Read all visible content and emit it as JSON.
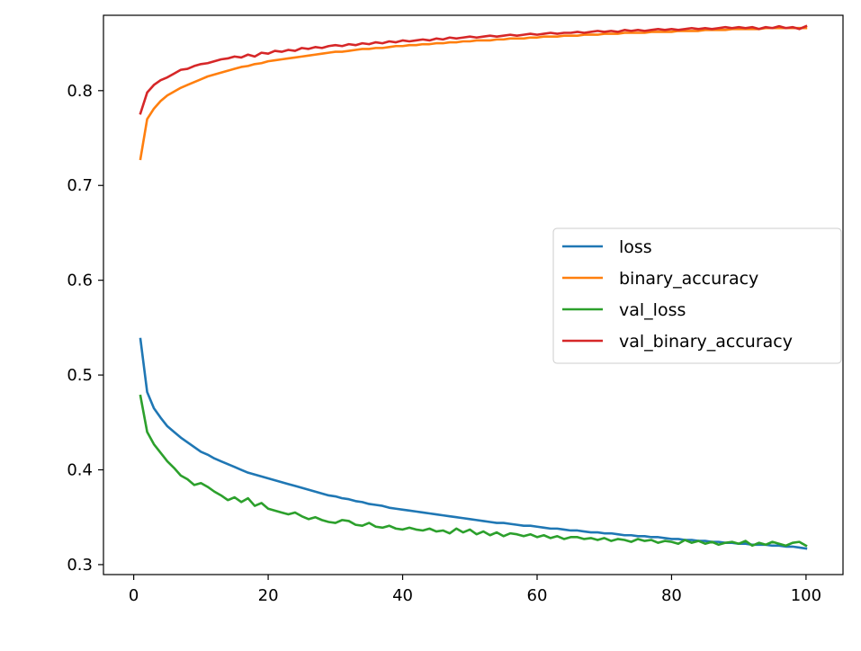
{
  "chart_data": {
    "type": "line",
    "title": "",
    "xlabel": "",
    "ylabel": "",
    "xlim": [
      -4.5,
      105.5
    ],
    "ylim": [
      0.2895,
      0.8795
    ],
    "x_ticks": [
      0,
      20,
      40,
      60,
      80,
      100
    ],
    "y_ticks": [
      0.3,
      0.4,
      0.5,
      0.6,
      0.7,
      0.8
    ],
    "x_tick_labels": [
      "0",
      "20",
      "40",
      "60",
      "80",
      "100"
    ],
    "y_tick_labels": [
      "0.3",
      "0.4",
      "0.5",
      "0.6",
      "0.7",
      "0.8"
    ],
    "grid": false,
    "legend_position": "center-right",
    "x": [
      1,
      2,
      3,
      4,
      5,
      6,
      7,
      8,
      9,
      10,
      11,
      12,
      13,
      14,
      15,
      16,
      17,
      18,
      19,
      20,
      21,
      22,
      23,
      24,
      25,
      26,
      27,
      28,
      29,
      30,
      31,
      32,
      33,
      34,
      35,
      36,
      37,
      38,
      39,
      40,
      41,
      42,
      43,
      44,
      45,
      46,
      47,
      48,
      49,
      50,
      51,
      52,
      53,
      54,
      55,
      56,
      57,
      58,
      59,
      60,
      61,
      62,
      63,
      64,
      65,
      66,
      67,
      68,
      69,
      70,
      71,
      72,
      73,
      74,
      75,
      76,
      77,
      78,
      79,
      80,
      81,
      82,
      83,
      84,
      85,
      86,
      87,
      88,
      89,
      90,
      91,
      92,
      93,
      94,
      95,
      96,
      97,
      98,
      99,
      100
    ],
    "series": [
      {
        "name": "loss",
        "color": "#1f77b4",
        "values": [
          0.538,
          0.482,
          0.465,
          0.455,
          0.446,
          0.44,
          0.434,
          0.429,
          0.424,
          0.419,
          0.416,
          0.412,
          0.409,
          0.406,
          0.403,
          0.4,
          0.397,
          0.395,
          0.393,
          0.391,
          0.389,
          0.387,
          0.385,
          0.383,
          0.381,
          0.379,
          0.377,
          0.375,
          0.373,
          0.372,
          0.37,
          0.369,
          0.367,
          0.366,
          0.364,
          0.363,
          0.362,
          0.36,
          0.359,
          0.358,
          0.357,
          0.356,
          0.355,
          0.354,
          0.353,
          0.352,
          0.351,
          0.35,
          0.349,
          0.348,
          0.347,
          0.346,
          0.345,
          0.344,
          0.344,
          0.343,
          0.342,
          0.341,
          0.341,
          0.34,
          0.339,
          0.338,
          0.338,
          0.337,
          0.336,
          0.336,
          0.335,
          0.334,
          0.334,
          0.333,
          0.333,
          0.332,
          0.331,
          0.331,
          0.33,
          0.33,
          0.329,
          0.329,
          0.328,
          0.327,
          0.327,
          0.326,
          0.326,
          0.325,
          0.325,
          0.324,
          0.324,
          0.323,
          0.323,
          0.322,
          0.322,
          0.321,
          0.321,
          0.321,
          0.32,
          0.32,
          0.319,
          0.319,
          0.318,
          0.317
        ]
      },
      {
        "name": "binary_accuracy",
        "color": "#ff7f0e",
        "values": [
          0.728,
          0.77,
          0.781,
          0.789,
          0.795,
          0.799,
          0.803,
          0.806,
          0.809,
          0.812,
          0.815,
          0.817,
          0.819,
          0.821,
          0.823,
          0.825,
          0.826,
          0.828,
          0.829,
          0.831,
          0.832,
          0.833,
          0.834,
          0.835,
          0.836,
          0.837,
          0.838,
          0.839,
          0.84,
          0.841,
          0.841,
          0.842,
          0.843,
          0.844,
          0.844,
          0.845,
          0.845,
          0.846,
          0.847,
          0.847,
          0.848,
          0.848,
          0.849,
          0.849,
          0.85,
          0.85,
          0.851,
          0.851,
          0.852,
          0.852,
          0.853,
          0.853,
          0.853,
          0.854,
          0.854,
          0.855,
          0.855,
          0.855,
          0.856,
          0.856,
          0.857,
          0.857,
          0.857,
          0.858,
          0.858,
          0.858,
          0.859,
          0.859,
          0.859,
          0.86,
          0.86,
          0.86,
          0.861,
          0.861,
          0.861,
          0.861,
          0.862,
          0.862,
          0.862,
          0.862,
          0.863,
          0.863,
          0.863,
          0.863,
          0.864,
          0.864,
          0.864,
          0.864,
          0.865,
          0.865,
          0.865,
          0.865,
          0.865,
          0.866,
          0.866,
          0.866,
          0.866,
          0.866,
          0.866,
          0.866
        ]
      },
      {
        "name": "val_loss",
        "color": "#2ca02c",
        "values": [
          0.478,
          0.44,
          0.427,
          0.418,
          0.409,
          0.402,
          0.394,
          0.39,
          0.384,
          0.386,
          0.382,
          0.377,
          0.373,
          0.368,
          0.371,
          0.366,
          0.37,
          0.362,
          0.365,
          0.359,
          0.357,
          0.355,
          0.353,
          0.355,
          0.351,
          0.348,
          0.35,
          0.347,
          0.345,
          0.344,
          0.347,
          0.346,
          0.342,
          0.341,
          0.344,
          0.34,
          0.339,
          0.341,
          0.338,
          0.337,
          0.339,
          0.337,
          0.336,
          0.338,
          0.335,
          0.336,
          0.333,
          0.338,
          0.334,
          0.337,
          0.332,
          0.335,
          0.331,
          0.334,
          0.33,
          0.333,
          0.332,
          0.33,
          0.332,
          0.329,
          0.331,
          0.328,
          0.33,
          0.327,
          0.329,
          0.329,
          0.327,
          0.328,
          0.326,
          0.328,
          0.325,
          0.327,
          0.326,
          0.324,
          0.327,
          0.325,
          0.326,
          0.323,
          0.325,
          0.324,
          0.322,
          0.326,
          0.323,
          0.325,
          0.322,
          0.324,
          0.321,
          0.323,
          0.324,
          0.322,
          0.325,
          0.32,
          0.323,
          0.321,
          0.324,
          0.322,
          0.32,
          0.323,
          0.324,
          0.32
        ]
      },
      {
        "name": "val_binary_accuracy",
        "color": "#d62728",
        "values": [
          0.776,
          0.798,
          0.806,
          0.811,
          0.814,
          0.818,
          0.822,
          0.823,
          0.826,
          0.828,
          0.829,
          0.831,
          0.833,
          0.834,
          0.836,
          0.835,
          0.838,
          0.836,
          0.84,
          0.839,
          0.842,
          0.841,
          0.843,
          0.842,
          0.845,
          0.844,
          0.846,
          0.845,
          0.847,
          0.848,
          0.847,
          0.849,
          0.848,
          0.85,
          0.849,
          0.851,
          0.85,
          0.852,
          0.851,
          0.853,
          0.852,
          0.853,
          0.854,
          0.853,
          0.855,
          0.854,
          0.856,
          0.855,
          0.856,
          0.857,
          0.856,
          0.857,
          0.858,
          0.857,
          0.858,
          0.859,
          0.858,
          0.859,
          0.86,
          0.859,
          0.86,
          0.861,
          0.86,
          0.861,
          0.861,
          0.862,
          0.861,
          0.862,
          0.863,
          0.862,
          0.863,
          0.862,
          0.864,
          0.863,
          0.864,
          0.863,
          0.864,
          0.865,
          0.864,
          0.865,
          0.864,
          0.865,
          0.866,
          0.865,
          0.866,
          0.865,
          0.866,
          0.867,
          0.866,
          0.867,
          0.866,
          0.867,
          0.865,
          0.867,
          0.866,
          0.868,
          0.866,
          0.867,
          0.865,
          0.868
        ]
      }
    ]
  }
}
